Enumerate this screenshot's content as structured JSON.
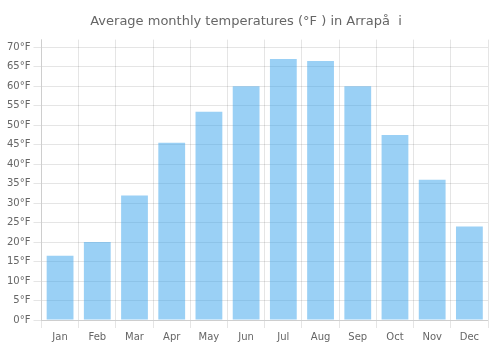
{
  "chart_data": {
    "type": "bar",
    "title": "Average monthly temperatures (°F ) in Arrapå  i",
    "categories": [
      "Jan",
      "Feb",
      "Mar",
      "Apr",
      "May",
      "Jun",
      "Jul",
      "Aug",
      "Sep",
      "Oct",
      "Nov",
      "Dec"
    ],
    "values": [
      16.5,
      20.0,
      32.0,
      45.5,
      53.5,
      60.0,
      67.0,
      66.5,
      60.0,
      47.5,
      36.0,
      24.0
    ],
    "ylim": [
      0,
      72
    ],
    "yticks": [
      {
        "value": 0,
        "label": "0°F"
      },
      {
        "value": 5,
        "label": "5°F"
      },
      {
        "value": 10,
        "label": "10°F"
      },
      {
        "value": 15,
        "label": "15°F"
      },
      {
        "value": 20,
        "label": "20°F"
      },
      {
        "value": 25,
        "label": "25°F"
      },
      {
        "value": 30,
        "label": "30°F"
      },
      {
        "value": 35,
        "label": "35°F"
      },
      {
        "value": 40,
        "label": "40°F"
      },
      {
        "value": 45,
        "label": "45°F"
      },
      {
        "value": 50,
        "label": "50°F"
      },
      {
        "value": 55,
        "label": "55°F"
      },
      {
        "value": 60,
        "label": "60°F"
      },
      {
        "value": 65,
        "label": "65°F"
      },
      {
        "value": 70,
        "label": "70°F"
      }
    ],
    "grid": true
  }
}
